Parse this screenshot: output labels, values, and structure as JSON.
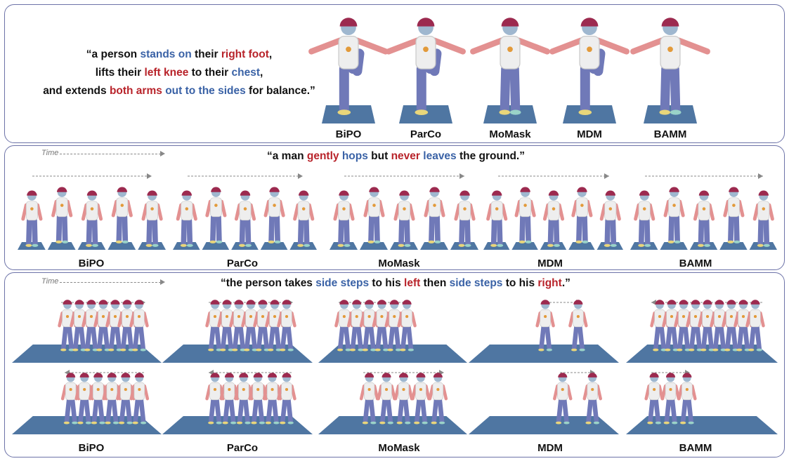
{
  "row1": {
    "prompt_lines": [
      [
        {
          "t": "“a person ",
          "c": ""
        },
        {
          "t": "stands on",
          "c": "blue"
        },
        {
          "t": " their ",
          "c": ""
        },
        {
          "t": "right foot",
          "c": "red"
        },
        {
          "t": ",",
          "c": ""
        }
      ],
      [
        {
          "t": "lifts their ",
          "c": ""
        },
        {
          "t": "left knee",
          "c": "red"
        },
        {
          "t": " to their ",
          "c": ""
        },
        {
          "t": "chest",
          "c": "blue"
        },
        {
          "t": ",",
          "c": ""
        }
      ],
      [
        {
          "t": "and extends ",
          "c": ""
        },
        {
          "t": "both arms",
          "c": "red"
        },
        {
          "t": " ",
          "c": ""
        },
        {
          "t": "out to the sides",
          "c": "blue"
        },
        {
          "t": " for balance.”",
          "c": ""
        }
      ]
    ],
    "methods": [
      "BiPO",
      "ParCo",
      "MoMask",
      "MDM",
      "BAMM"
    ]
  },
  "row2": {
    "time_label": "Time",
    "prompt": [
      {
        "t": "“a man ",
        "c": ""
      },
      {
        "t": "gently",
        "c": "red"
      },
      {
        "t": " ",
        "c": ""
      },
      {
        "t": "hops",
        "c": "blue"
      },
      {
        "t": " but ",
        "c": ""
      },
      {
        "t": "never",
        "c": "red"
      },
      {
        "t": " ",
        "c": ""
      },
      {
        "t": "leaves",
        "c": "blue"
      },
      {
        "t": " the ground.”",
        "c": ""
      }
    ],
    "methods": [
      "BiPO",
      "ParCo",
      "MoMask",
      "MDM",
      "BAMM"
    ]
  },
  "row3": {
    "time_label": "Time",
    "prompt": [
      {
        "t": "“the person takes ",
        "c": ""
      },
      {
        "t": "side steps",
        "c": "blue"
      },
      {
        "t": " to his ",
        "c": ""
      },
      {
        "t": "left",
        "c": "red"
      },
      {
        "t": " then ",
        "c": ""
      },
      {
        "t": "side steps",
        "c": "blue"
      },
      {
        "t": " to his ",
        "c": ""
      },
      {
        "t": "right",
        "c": "red"
      },
      {
        "t": ".”",
        "c": ""
      }
    ],
    "methods": [
      "BiPO",
      "ParCo",
      "MoMask",
      "MDM",
      "BAMM"
    ]
  },
  "colors": {
    "panel_border": "#6d73a8",
    "floor": "#4f76a2",
    "shirt": "#eeeeee",
    "pants": "#7079b8",
    "skin": "#e39191",
    "helmet": "#9c2a4f",
    "text_red": "#b8232a",
    "text_blue": "#3a62a6"
  }
}
